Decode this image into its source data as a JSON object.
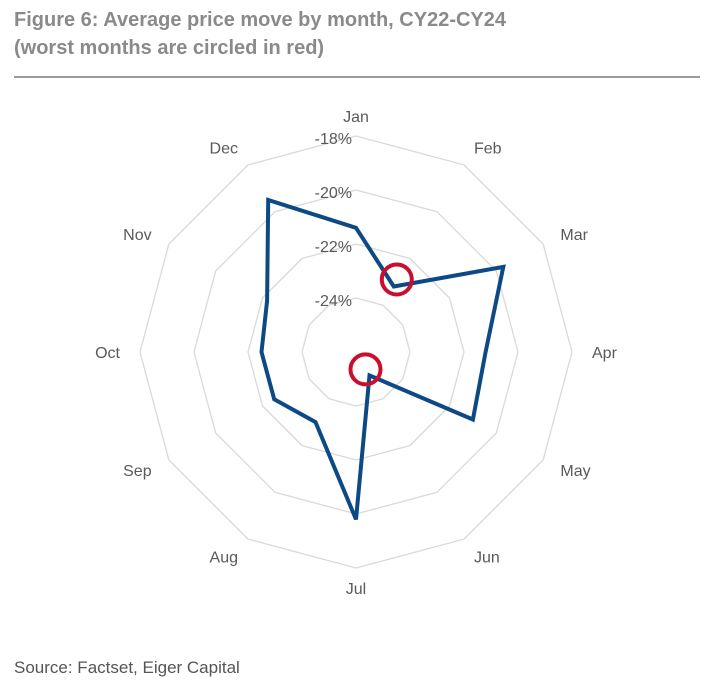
{
  "figure": {
    "title_line1": "Figure 6: Average price move by month, CY22-CY24",
    "title_line2": "(worst months are circled in red)",
    "source": "Source: Factset, Eiger Capital"
  },
  "chart_data": {
    "type": "radar",
    "categories": [
      "Jan",
      "Feb",
      "Mar",
      "Apr",
      "May",
      "Jun",
      "Jul",
      "Aug",
      "Sep",
      "Oct",
      "Nov",
      "Dec"
    ],
    "series": [
      {
        "values": [
          -21.4,
          -23.2,
          -19.7,
          -21.2,
          -21.0,
          -25.0,
          -19.8,
          -23.0,
          -22.5,
          -22.5,
          -22.2,
          -19.5
        ],
        "color": "#0d4a85"
      }
    ],
    "radial_axis": {
      "min": -26,
      "max": -18,
      "ticks": [
        -18,
        -20,
        -22,
        -24
      ],
      "tick_labels": [
        "-18%",
        "-20%",
        "-22%",
        "-24%"
      ]
    },
    "highlight": {
      "categories": [
        "Feb",
        "Jun"
      ],
      "color": "#c8102e",
      "description": "worst months are circled in red"
    },
    "grid": true,
    "grid_color": "#d9d9d9"
  }
}
